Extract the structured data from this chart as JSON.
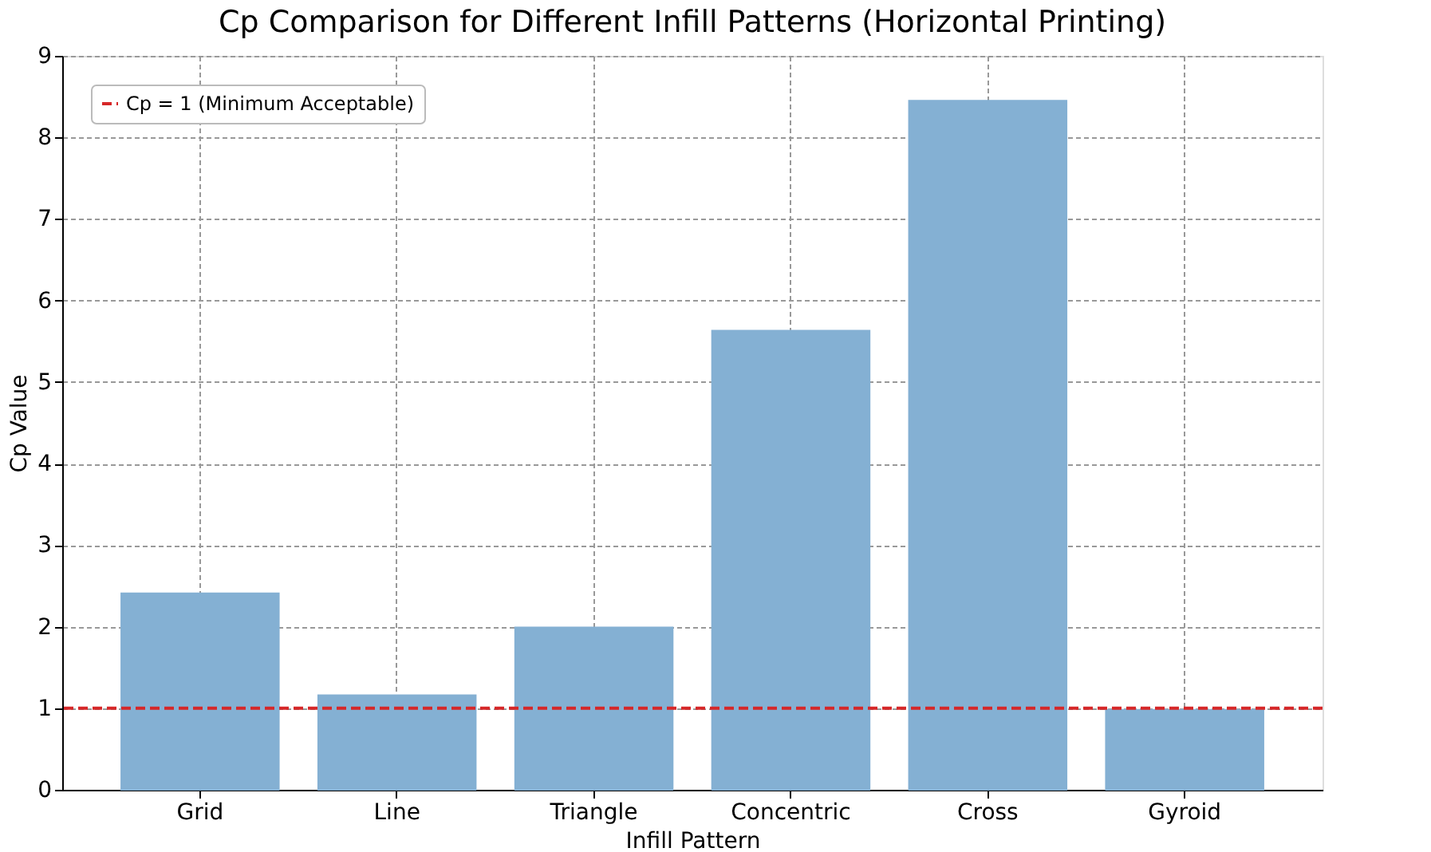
{
  "chart_data": {
    "type": "bar",
    "title": "Cp Comparison for Different Infill Patterns (Horizontal Printing)",
    "xlabel": "Infill Pattern",
    "ylabel": "Cp Value",
    "categories": [
      "Grid",
      "Line",
      "Triangle",
      "Concentric",
      "Cross",
      "Gyroid"
    ],
    "values": [
      2.41,
      1.16,
      1.99,
      5.63,
      8.45,
      0.98
    ],
    "color": "#84b0d3",
    "ylim": [
      0,
      9
    ],
    "yticks": [
      0,
      1,
      2,
      3,
      4,
      5,
      6,
      7,
      8,
      9
    ],
    "grid": true,
    "legend": "top left",
    "ref_lines": [
      {
        "axis": "y",
        "value": 1,
        "label": "Cp = 1 (Minimum Acceptable)",
        "color": "#d62728",
        "line_style": "dashed"
      }
    ]
  }
}
